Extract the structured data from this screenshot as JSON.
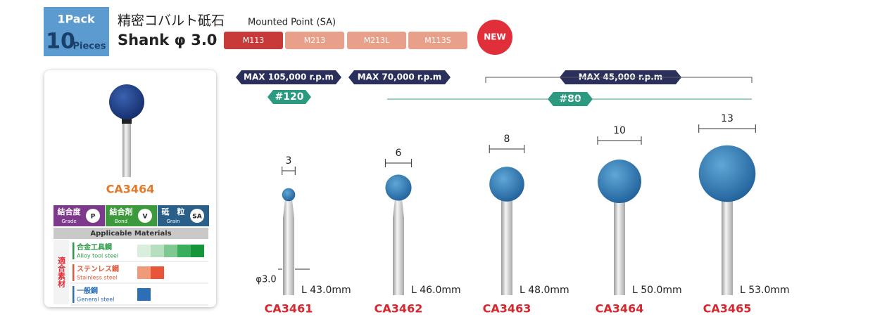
{
  "header": {
    "pack": "1Pack",
    "count": "10",
    "unit": "Pieces",
    "title_jp": "精密コバルト砥石",
    "title_en": "Mounted Point (SA)",
    "shank": "Shank φ 3.0",
    "tabs": [
      "M113",
      "M213",
      "M213L",
      "M113S"
    ],
    "new_badge": "NEW"
  },
  "speeds": [
    "MAX 105,000 r.p.m",
    "MAX 70,000 r.p.m",
    "MAX 45,000 r.p.m"
  ],
  "grits": [
    "#120",
    "#80"
  ],
  "card": {
    "product": "CA3464",
    "specs": [
      {
        "jp": "結合度",
        "en": "Grade",
        "code": "P"
      },
      {
        "jp": "結合剤",
        "en": "Bond",
        "code": "V"
      },
      {
        "jp": "砥　粒",
        "en": "Grain",
        "code": "SA"
      }
    ],
    "materials_title": "Applicable Materials",
    "side_label": "適合素材",
    "materials": [
      {
        "jp": "合金工具鋼",
        "en": "Alloy tool steel"
      },
      {
        "jp": "ステンレス鋼",
        "en": "Stainless steel"
      },
      {
        "jp": "一般鋼",
        "en": "General steel"
      }
    ]
  },
  "shank_diameter": "φ3.0",
  "products": [
    {
      "diameter": 3,
      "length": "L 43.0mm",
      "code": "CA3461"
    },
    {
      "diameter": 6,
      "length": "L 46.0mm",
      "code": "CA3462"
    },
    {
      "diameter": 8,
      "length": "L 48.0mm",
      "code": "CA3463"
    },
    {
      "diameter": 10,
      "length": "L 50.0mm",
      "code": "CA3464"
    },
    {
      "diameter": 13,
      "length": "L 53.0mm",
      "code": "CA3465"
    }
  ]
}
